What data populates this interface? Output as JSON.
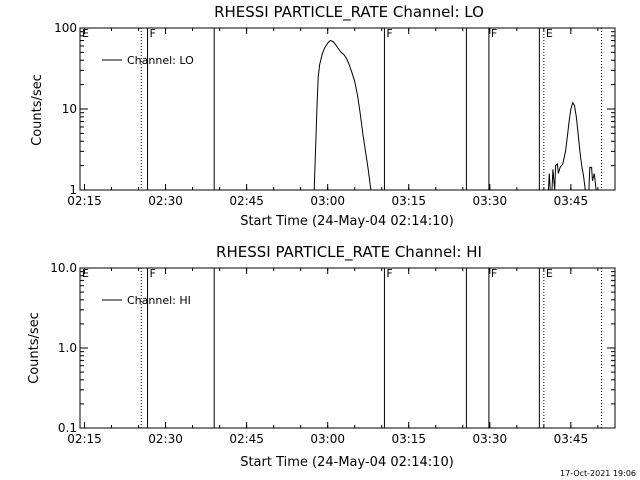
{
  "footer_timestamp": "17-Oct-2021 19:06",
  "chart_data": [
    {
      "type": "line",
      "title": "RHESSI PARTICLE_RATE Channel: LO",
      "xlabel": "Start Time (24-May-04 02:14:10)",
      "ylabel": "Counts/sec",
      "yscale": "log",
      "xlim": [
        "02:14:10",
        "03:53:10"
      ],
      "ylim": [
        1,
        100
      ],
      "xticks": [
        "02:15",
        "02:30",
        "02:45",
        "03:00",
        "03:15",
        "03:30",
        "03:45"
      ],
      "yticks": [
        "1",
        "10",
        "100"
      ],
      "legend": {
        "entries": [
          "Channel: LO"
        ],
        "position": "top-left"
      },
      "flag_markers": [
        {
          "label": "E",
          "time": "02:14:10",
          "style": "none"
        },
        {
          "label": "",
          "time": "02:25:30",
          "style": "dotted"
        },
        {
          "label": "F",
          "time": "02:26:40",
          "style": "solid"
        },
        {
          "label": "",
          "time": "02:39:00",
          "style": "solid"
        },
        {
          "label": "F",
          "time": "03:10:30",
          "style": "solid"
        },
        {
          "label": "",
          "time": "03:25:40",
          "style": "solid"
        },
        {
          "label": "F",
          "time": "03:29:50",
          "style": "solid"
        },
        {
          "label": "",
          "time": "03:39:10",
          "style": "solid"
        },
        {
          "label": "E",
          "time": "03:40:00",
          "style": "dotted"
        },
        {
          "label": "",
          "time": "03:50:40",
          "style": "dotted"
        }
      ],
      "series": [
        {
          "name": "Channel: LO",
          "segments": [
            {
              "x": [
                "02:57:30",
                "02:57:45",
                "02:58:00",
                "02:58:15",
                "02:58:30",
                "02:59:00",
                "02:59:30",
                "03:00:00",
                "03:00:30",
                "03:01:00",
                "03:01:30",
                "03:02:00",
                "03:02:30",
                "03:03:00",
                "03:03:30",
                "03:04:00",
                "03:04:30",
                "03:05:00",
                "03:05:30",
                "03:06:00",
                "03:06:30",
                "03:07:00",
                "03:07:30",
                "03:08:00"
              ],
              "y": [
                1,
                3,
                10,
                25,
                35,
                48,
                58,
                65,
                70,
                68,
                62,
                55,
                50,
                47,
                42,
                35,
                28,
                22,
                15,
                9,
                5,
                3,
                1.8,
                1
              ]
            },
            {
              "x": [
                "03:40:50",
                "03:41:00",
                "03:41:10",
                "03:41:30",
                "03:41:40",
                "03:42:00",
                "03:42:10",
                "03:42:30",
                "03:42:40",
                "03:43:00",
                "03:43:30",
                "03:44:00",
                "03:44:20",
                "03:44:40",
                "03:45:00",
                "03:45:20",
                "03:45:40",
                "03:46:00",
                "03:46:20",
                "03:46:40",
                "03:47:00",
                "03:47:20",
                "03:47:40"
              ],
              "y": [
                1,
                1.6,
                1,
                1,
                1.8,
                1,
                2,
                2.1,
                1.6,
                1.9,
                2.1,
                3,
                4.5,
                7,
                10,
                12,
                11,
                8,
                5,
                3,
                2,
                1.5,
                1
              ]
            },
            {
              "x": [
                "03:48:20",
                "03:48:30",
                "03:48:50",
                "03:49:00",
                "03:49:20",
                "03:49:40"
              ],
              "y": [
                1,
                1.9,
                1.9,
                1.3,
                1.6,
                1
              ]
            }
          ]
        }
      ]
    },
    {
      "type": "line",
      "title": "RHESSI PARTICLE_RATE Channel: HI",
      "xlabel": "Start Time (24-May-04 02:14:10)",
      "ylabel": "Counts/sec",
      "yscale": "log",
      "xlim": [
        "02:14:10",
        "03:53:10"
      ],
      "ylim": [
        0.1,
        10
      ],
      "xticks": [
        "02:15",
        "02:30",
        "02:45",
        "03:00",
        "03:15",
        "03:30",
        "03:45"
      ],
      "yticks": [
        "0.1",
        "1.0",
        "10.0"
      ],
      "legend": {
        "entries": [
          "Channel: HI"
        ],
        "position": "top-left"
      },
      "flag_markers": [
        {
          "label": "E",
          "time": "02:14:10",
          "style": "none"
        },
        {
          "label": "",
          "time": "02:25:30",
          "style": "dotted"
        },
        {
          "label": "F",
          "time": "02:26:40",
          "style": "solid"
        },
        {
          "label": "",
          "time": "02:39:00",
          "style": "solid"
        },
        {
          "label": "F",
          "time": "03:10:30",
          "style": "solid"
        },
        {
          "label": "",
          "time": "03:25:40",
          "style": "solid"
        },
        {
          "label": "F",
          "time": "03:29:50",
          "style": "solid"
        },
        {
          "label": "",
          "time": "03:39:10",
          "style": "solid"
        },
        {
          "label": "E",
          "time": "03:40:00",
          "style": "dotted"
        },
        {
          "label": "",
          "time": "03:50:40",
          "style": "dotted"
        }
      ],
      "series": [
        {
          "name": "Channel: HI",
          "segments": []
        }
      ]
    }
  ]
}
